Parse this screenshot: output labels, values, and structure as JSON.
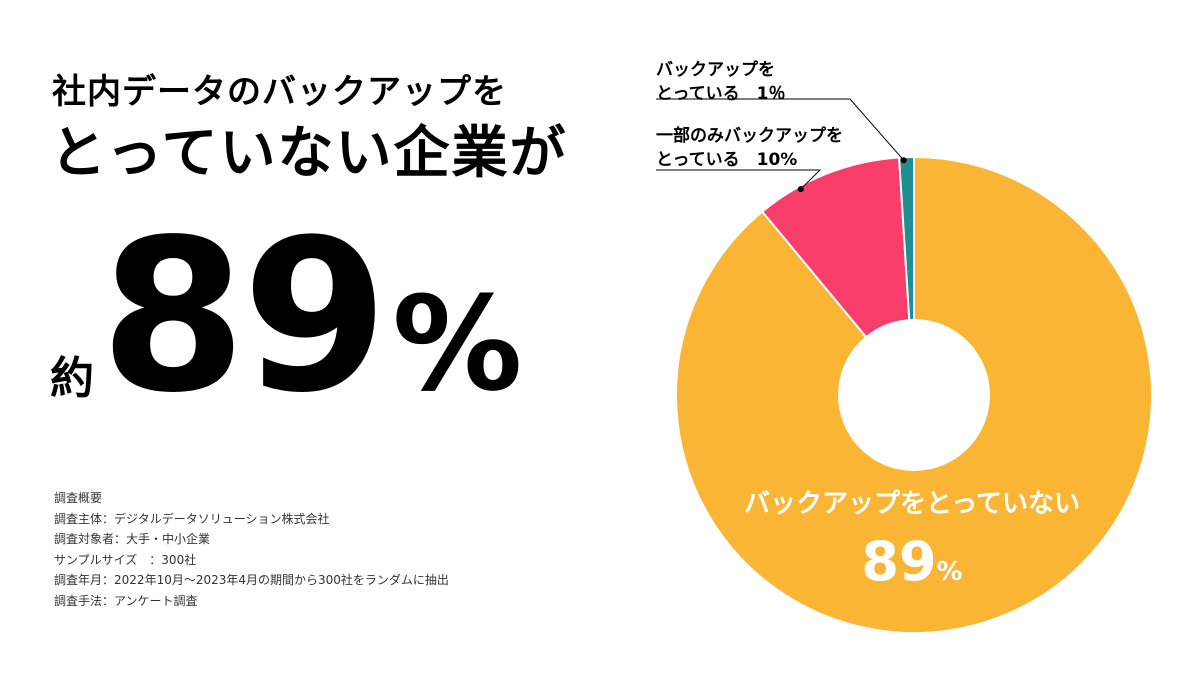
{
  "headline": {
    "line1": "社内データのバックアップを",
    "line2": "とっていない企業が"
  },
  "highlight": {
    "prefix": "約",
    "number": "89",
    "unit": "%"
  },
  "survey": {
    "title": "調査概要",
    "rows": [
      {
        "key": "調査主体",
        "sep": "：",
        "value": "デジタルデータソリューション株式会社"
      },
      {
        "key": "調査対象者",
        "sep": "：",
        "value": "大手・中小企業"
      },
      {
        "key": "サンプルサイズ",
        "sep": "　：",
        "value": "300社"
      },
      {
        "key": "調査年月",
        "sep": "：",
        "value": "2022年10月〜2023年4月の期間から300社をランダムに抽出"
      },
      {
        "key": "調査手法",
        "sep": "：",
        "value": "アンケート調査"
      }
    ]
  },
  "chart_data": {
    "type": "pie",
    "donut": true,
    "start_angle_deg": 0,
    "direction": "clockwise",
    "slices": [
      {
        "label_line1": "バックアップをとっていない",
        "value": 89,
        "value_text": "89",
        "unit": "%",
        "color": "#FBB535",
        "label_position": "inside"
      },
      {
        "label_line1": "一部のみバックアップを",
        "label_line2": "とっている",
        "value": 10,
        "value_text": "10%",
        "color": "#F83D6B",
        "label_position": "callout"
      },
      {
        "label_line1": "バックアップを",
        "label_line2": "とっている",
        "value": 1,
        "value_text": "1％",
        "color": "#1E8E8E",
        "label_position": "callout"
      }
    ],
    "slice_border_color": "#ffffff",
    "hole_color": "#ffffff"
  }
}
